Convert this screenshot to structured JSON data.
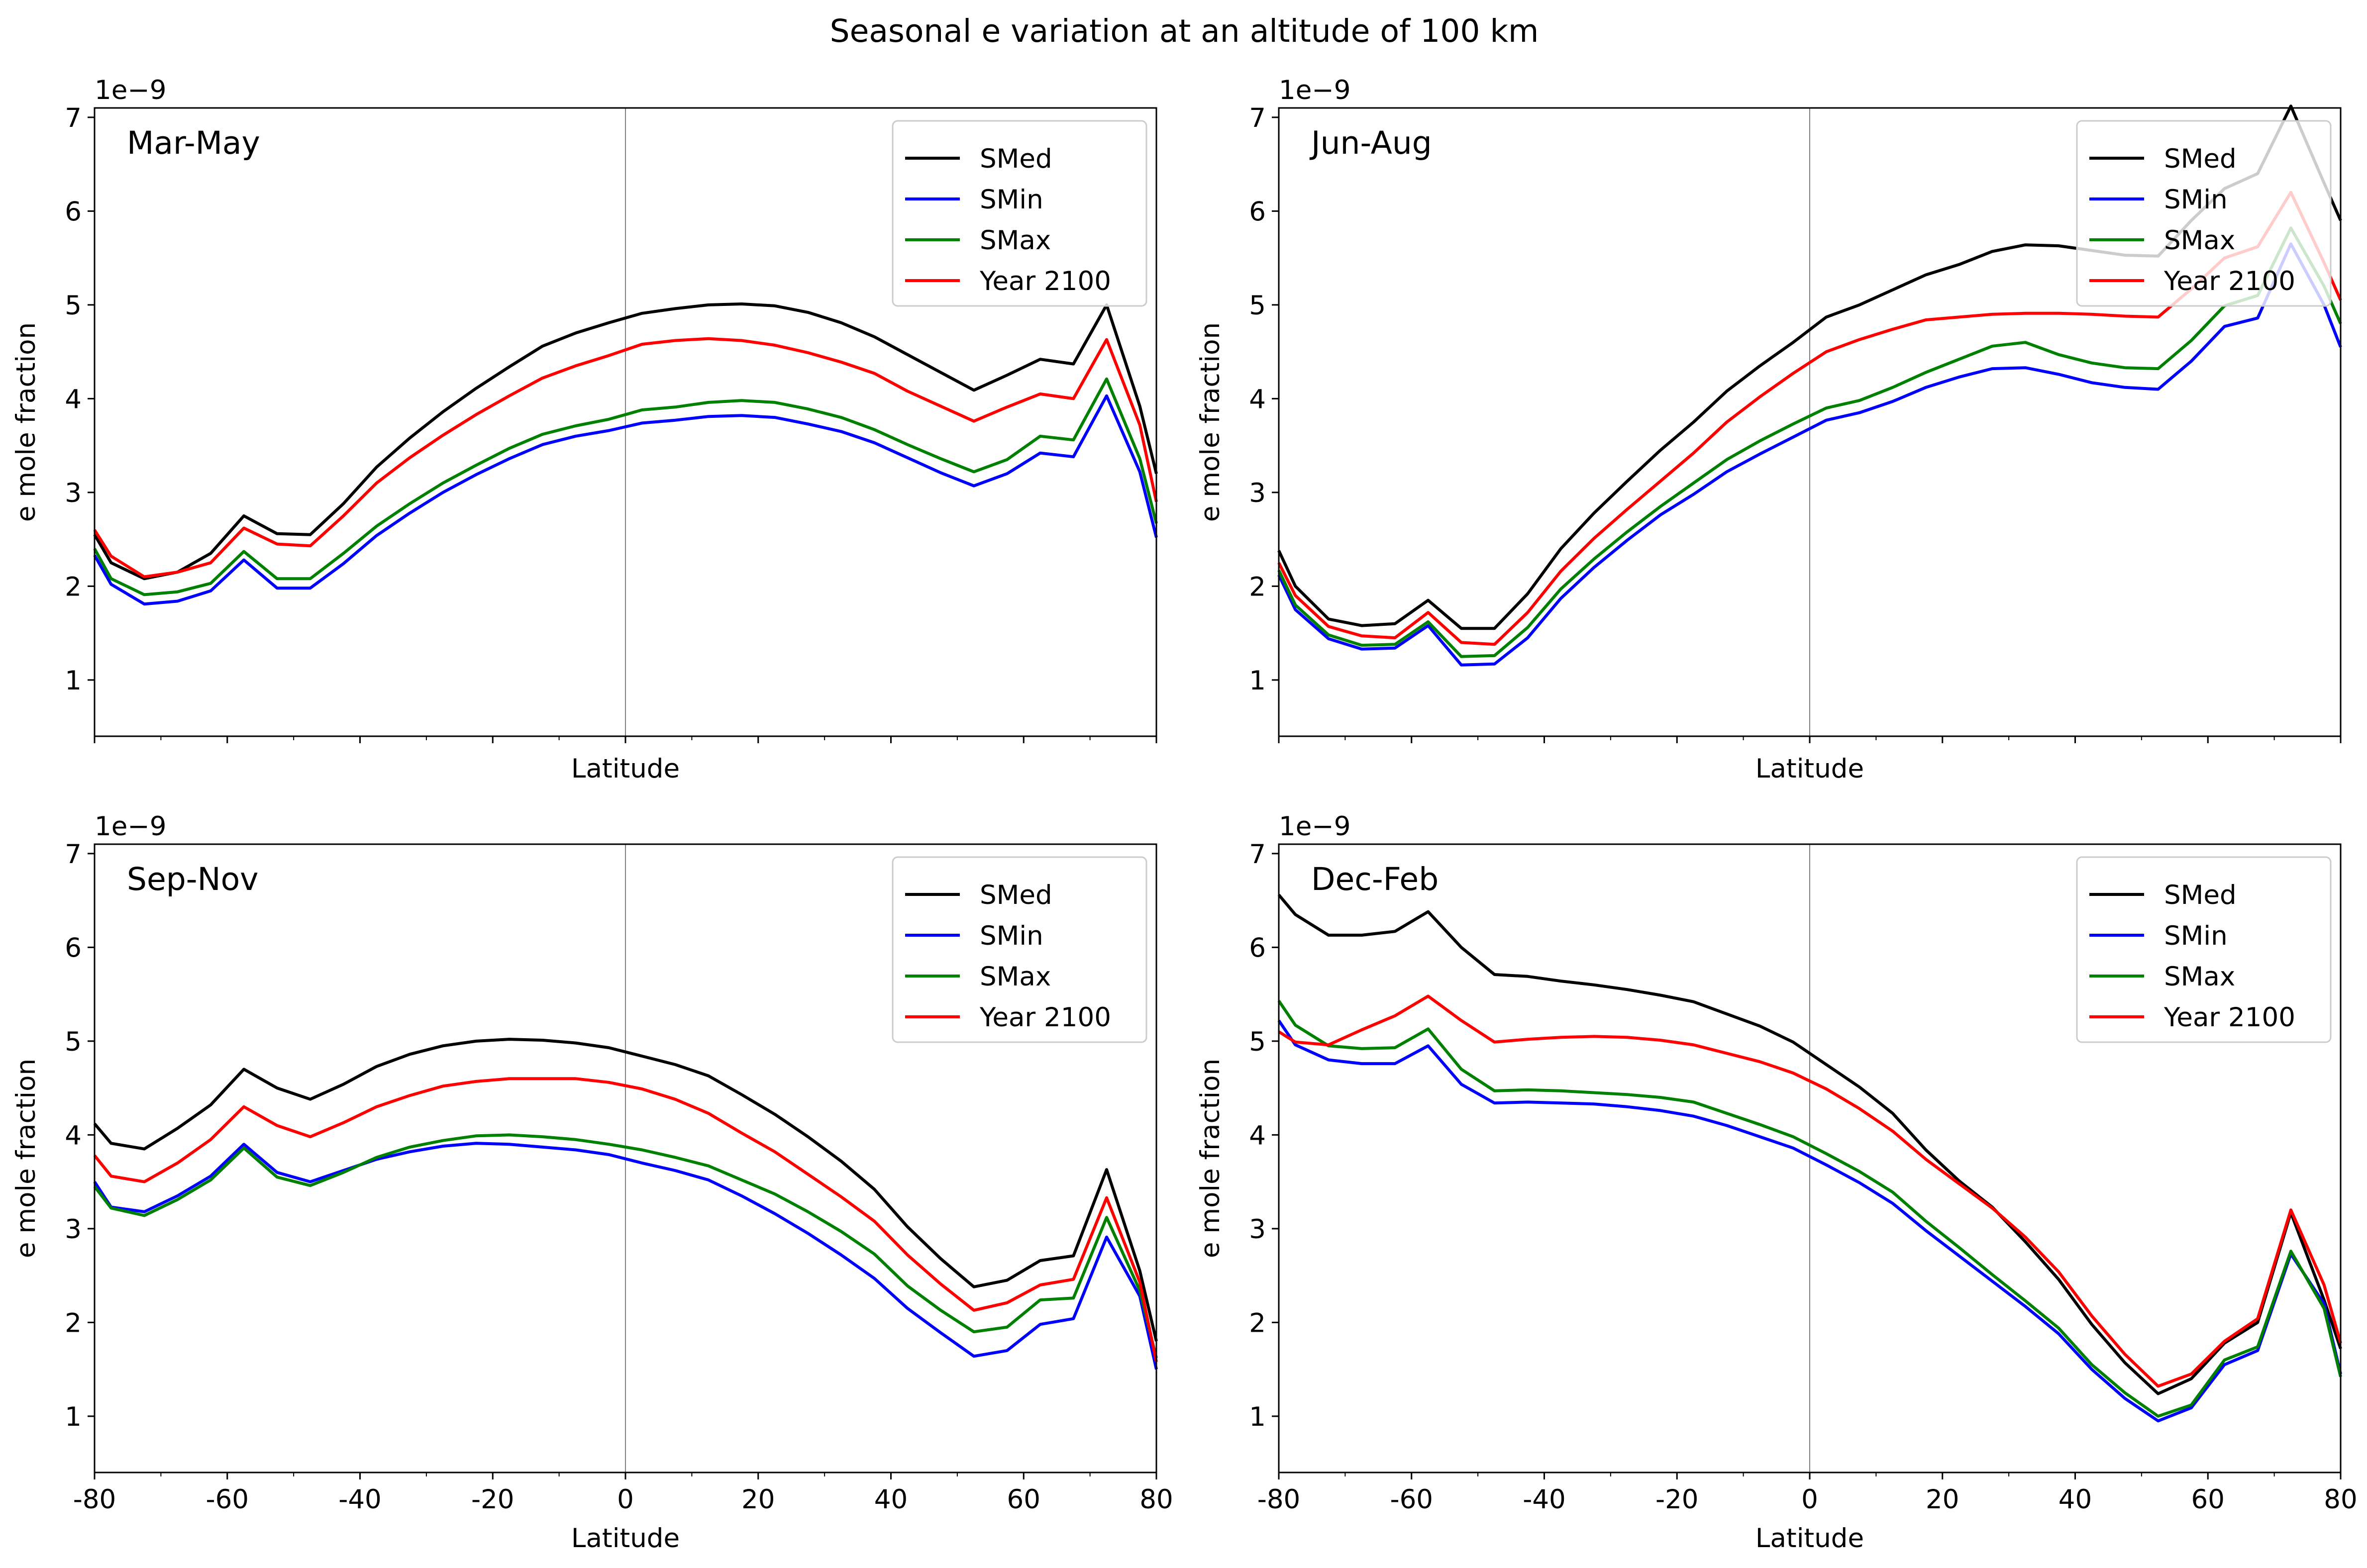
{
  "suptitle": "Seasonal e variation at an altitude of 100 km",
  "colors": {
    "SMed": "#000000",
    "SMin": "#0000ff",
    "SMax": "#008000",
    "Year 2100": "#ff0000"
  },
  "chart_data": [
    {
      "type": "line",
      "panel_label": "Mar-May",
      "xlabel": "Latitude",
      "ylabel": "e mole fraction",
      "y_offset_text": "1e−9",
      "xlim": [
        -80,
        80
      ],
      "ylim": [
        0.4,
        7.1
      ],
      "show_x_tick_labels": false,
      "legend": "top-right",
      "vline_at": 0,
      "x": [
        -80,
        -77.5,
        -72.5,
        -67.5,
        -62.5,
        -57.5,
        -52.5,
        -47.5,
        -42.5,
        -37.5,
        -32.5,
        -27.5,
        -22.5,
        -17.5,
        -12.5,
        -7.5,
        -2.5,
        2.5,
        7.5,
        12.5,
        17.5,
        22.5,
        27.5,
        32.5,
        37.5,
        42.5,
        47.5,
        52.5,
        57.5,
        62.5,
        67.5,
        72.5,
        77.5,
        80
      ],
      "series": [
        {
          "name": "SMed",
          "values": [
            2.55,
            2.25,
            2.08,
            2.15,
            2.35,
            2.75,
            2.56,
            2.55,
            2.88,
            3.27,
            3.58,
            3.86,
            4.11,
            4.34,
            4.56,
            4.7,
            4.81,
            4.91,
            4.96,
            5.0,
            5.01,
            4.99,
            4.92,
            4.81,
            4.66,
            4.47,
            4.28,
            4.09,
            4.25,
            4.42,
            4.37,
            5.0,
            3.92,
            3.2
          ]
        },
        {
          "name": "SMin",
          "values": [
            2.33,
            2.02,
            1.81,
            1.84,
            1.95,
            2.28,
            1.98,
            1.98,
            2.24,
            2.54,
            2.78,
            3.0,
            3.19,
            3.36,
            3.51,
            3.6,
            3.66,
            3.74,
            3.77,
            3.81,
            3.82,
            3.8,
            3.73,
            3.65,
            3.53,
            3.37,
            3.21,
            3.07,
            3.2,
            3.42,
            3.38,
            4.03,
            3.22,
            2.52
          ]
        },
        {
          "name": "SMax",
          "values": [
            2.4,
            2.08,
            1.91,
            1.94,
            2.03,
            2.37,
            2.08,
            2.08,
            2.35,
            2.64,
            2.88,
            3.1,
            3.29,
            3.47,
            3.62,
            3.71,
            3.78,
            3.88,
            3.91,
            3.96,
            3.98,
            3.96,
            3.89,
            3.8,
            3.67,
            3.51,
            3.36,
            3.22,
            3.35,
            3.6,
            3.56,
            4.21,
            3.36,
            2.67
          ]
        },
        {
          "name": "Year 2100",
          "values": [
            2.6,
            2.32,
            2.1,
            2.15,
            2.25,
            2.62,
            2.45,
            2.43,
            2.75,
            3.1,
            3.37,
            3.61,
            3.83,
            4.03,
            4.22,
            4.35,
            4.46,
            4.58,
            4.62,
            4.64,
            4.62,
            4.57,
            4.49,
            4.39,
            4.27,
            4.08,
            3.92,
            3.76,
            3.91,
            4.05,
            4.0,
            4.63,
            3.72,
            2.9
          ]
        }
      ]
    },
    {
      "type": "line",
      "panel_label": "Jun-Aug",
      "xlabel": "Latitude",
      "ylabel": "e mole fraction",
      "y_offset_text": "1e−9",
      "xlim": [
        -80,
        80
      ],
      "ylim": [
        0.4,
        7.1
      ],
      "show_x_tick_labels": false,
      "legend": "top-right",
      "vline_at": 0,
      "x": [
        -80,
        -77.5,
        -72.5,
        -67.5,
        -62.5,
        -57.5,
        -52.5,
        -47.5,
        -42.5,
        -37.5,
        -32.5,
        -27.5,
        -22.5,
        -17.5,
        -12.5,
        -7.5,
        -2.5,
        2.5,
        7.5,
        12.5,
        17.5,
        22.5,
        27.5,
        32.5,
        37.5,
        42.5,
        47.5,
        52.5,
        57.5,
        62.5,
        67.5,
        72.5,
        77.5,
        80
      ],
      "series": [
        {
          "name": "SMed",
          "values": [
            2.38,
            2.0,
            1.65,
            1.58,
            1.6,
            1.85,
            1.55,
            1.55,
            1.92,
            2.4,
            2.78,
            3.12,
            3.45,
            3.75,
            4.08,
            4.35,
            4.6,
            4.87,
            5.0,
            5.16,
            5.32,
            5.43,
            5.57,
            5.64,
            5.63,
            5.58,
            5.53,
            5.52,
            5.9,
            6.24,
            6.4,
            7.12,
            6.3,
            5.9
          ]
        },
        {
          "name": "SMin",
          "values": [
            2.12,
            1.75,
            1.44,
            1.33,
            1.34,
            1.58,
            1.16,
            1.17,
            1.45,
            1.87,
            2.2,
            2.49,
            2.76,
            2.98,
            3.22,
            3.41,
            3.59,
            3.77,
            3.85,
            3.97,
            4.12,
            4.23,
            4.32,
            4.33,
            4.26,
            4.17,
            4.12,
            4.1,
            4.4,
            4.77,
            4.86,
            5.65,
            5.0,
            4.55
          ]
        },
        {
          "name": "SMax",
          "values": [
            2.17,
            1.8,
            1.48,
            1.37,
            1.38,
            1.62,
            1.25,
            1.26,
            1.56,
            1.97,
            2.29,
            2.58,
            2.85,
            3.1,
            3.35,
            3.55,
            3.73,
            3.9,
            3.98,
            4.12,
            4.28,
            4.42,
            4.56,
            4.6,
            4.47,
            4.38,
            4.33,
            4.32,
            4.62,
            4.99,
            5.1,
            5.82,
            5.2,
            4.8
          ]
        },
        {
          "name": "Year 2100",
          "values": [
            2.25,
            1.9,
            1.57,
            1.47,
            1.45,
            1.72,
            1.4,
            1.38,
            1.72,
            2.16,
            2.51,
            2.82,
            3.12,
            3.42,
            3.75,
            4.02,
            4.27,
            4.5,
            4.63,
            4.74,
            4.84,
            4.87,
            4.9,
            4.91,
            4.91,
            4.9,
            4.88,
            4.87,
            5.17,
            5.5,
            5.62,
            6.2,
            5.45,
            5.05
          ]
        }
      ]
    },
    {
      "type": "line",
      "panel_label": "Sep-Nov",
      "xlabel": "Latitude",
      "ylabel": "e mole fraction",
      "y_offset_text": "1e−9",
      "xlim": [
        -80,
        80
      ],
      "ylim": [
        0.4,
        7.1
      ],
      "show_x_tick_labels": true,
      "legend": "top-right",
      "vline_at": 0,
      "x": [
        -80,
        -77.5,
        -72.5,
        -67.5,
        -62.5,
        -57.5,
        -52.5,
        -47.5,
        -42.5,
        -37.5,
        -32.5,
        -27.5,
        -22.5,
        -17.5,
        -12.5,
        -7.5,
        -2.5,
        2.5,
        7.5,
        12.5,
        17.5,
        22.5,
        27.5,
        32.5,
        37.5,
        42.5,
        47.5,
        52.5,
        57.5,
        62.5,
        67.5,
        72.5,
        77.5,
        80
      ],
      "series": [
        {
          "name": "SMed",
          "values": [
            4.12,
            3.91,
            3.85,
            4.07,
            4.32,
            4.7,
            4.5,
            4.38,
            4.54,
            4.73,
            4.86,
            4.95,
            5.0,
            5.02,
            5.01,
            4.98,
            4.93,
            4.84,
            4.75,
            4.63,
            4.43,
            4.22,
            3.98,
            3.72,
            3.42,
            3.02,
            2.68,
            2.38,
            2.45,
            2.66,
            2.71,
            3.63,
            2.55,
            1.8
          ]
        },
        {
          "name": "SMin",
          "values": [
            3.5,
            3.23,
            3.18,
            3.35,
            3.56,
            3.9,
            3.6,
            3.5,
            3.62,
            3.74,
            3.82,
            3.88,
            3.91,
            3.9,
            3.87,
            3.84,
            3.79,
            3.7,
            3.62,
            3.52,
            3.35,
            3.16,
            2.95,
            2.72,
            2.47,
            2.15,
            1.89,
            1.64,
            1.7,
            1.98,
            2.04,
            2.91,
            2.28,
            1.5
          ]
        },
        {
          "name": "SMax",
          "values": [
            3.45,
            3.22,
            3.14,
            3.31,
            3.52,
            3.86,
            3.55,
            3.46,
            3.6,
            3.76,
            3.87,
            3.94,
            3.99,
            4.0,
            3.98,
            3.95,
            3.9,
            3.84,
            3.76,
            3.67,
            3.52,
            3.37,
            3.18,
            2.97,
            2.73,
            2.39,
            2.13,
            1.9,
            1.95,
            2.24,
            2.26,
            3.12,
            2.34,
            1.62
          ]
        },
        {
          "name": "Year 2100",
          "values": [
            3.78,
            3.56,
            3.5,
            3.7,
            3.95,
            4.3,
            4.1,
            3.98,
            4.13,
            4.3,
            4.42,
            4.52,
            4.57,
            4.6,
            4.6,
            4.6,
            4.56,
            4.49,
            4.38,
            4.23,
            4.02,
            3.82,
            3.58,
            3.34,
            3.08,
            2.72,
            2.41,
            2.13,
            2.21,
            2.4,
            2.46,
            3.33,
            2.43,
            1.58
          ]
        }
      ]
    },
    {
      "type": "line",
      "panel_label": "Dec-Feb",
      "xlabel": "Latitude",
      "ylabel": "e mole fraction",
      "y_offset_text": "1e−9",
      "xlim": [
        -80,
        80
      ],
      "ylim": [
        0.4,
        7.1
      ],
      "show_x_tick_labels": true,
      "legend": "top-right",
      "vline_at": 0,
      "x": [
        -80,
        -77.5,
        -72.5,
        -67.5,
        -62.5,
        -57.5,
        -52.5,
        -47.5,
        -42.5,
        -37.5,
        -32.5,
        -27.5,
        -22.5,
        -17.5,
        -12.5,
        -7.5,
        -2.5,
        2.5,
        7.5,
        12.5,
        17.5,
        22.5,
        27.5,
        32.5,
        37.5,
        42.5,
        47.5,
        52.5,
        57.5,
        62.5,
        67.5,
        72.5,
        77.5,
        80
      ],
      "series": [
        {
          "name": "SMed",
          "values": [
            6.56,
            6.35,
            6.13,
            6.13,
            6.17,
            6.38,
            6.0,
            5.71,
            5.69,
            5.64,
            5.6,
            5.55,
            5.49,
            5.42,
            5.29,
            5.16,
            4.99,
            4.75,
            4.51,
            4.23,
            3.84,
            3.51,
            3.23,
            2.86,
            2.46,
            1.98,
            1.57,
            1.24,
            1.4,
            1.78,
            2.0,
            3.17,
            2.24,
            1.72
          ]
        },
        {
          "name": "SMin",
          "values": [
            5.22,
            4.96,
            4.8,
            4.76,
            4.76,
            4.95,
            4.54,
            4.34,
            4.35,
            4.34,
            4.33,
            4.3,
            4.26,
            4.2,
            4.1,
            3.98,
            3.86,
            3.68,
            3.49,
            3.27,
            2.98,
            2.71,
            2.44,
            2.17,
            1.88,
            1.5,
            1.19,
            0.95,
            1.09,
            1.55,
            1.7,
            2.73,
            2.2,
            1.45
          ]
        },
        {
          "name": "SMax",
          "values": [
            5.43,
            5.17,
            4.95,
            4.92,
            4.93,
            5.13,
            4.7,
            4.47,
            4.48,
            4.47,
            4.45,
            4.43,
            4.4,
            4.35,
            4.23,
            4.11,
            3.98,
            3.8,
            3.61,
            3.39,
            3.08,
            2.8,
            2.51,
            2.23,
            1.94,
            1.55,
            1.25,
            1.0,
            1.12,
            1.6,
            1.74,
            2.76,
            2.15,
            1.42
          ]
        },
        {
          "name": "Year 2100",
          "values": [
            5.1,
            4.99,
            4.96,
            5.12,
            5.27,
            5.48,
            5.22,
            4.99,
            5.02,
            5.04,
            5.05,
            5.04,
            5.01,
            4.96,
            4.87,
            4.78,
            4.66,
            4.49,
            4.28,
            4.04,
            3.74,
            3.48,
            3.22,
            2.91,
            2.54,
            2.07,
            1.66,
            1.32,
            1.45,
            1.8,
            2.04,
            3.2,
            2.4,
            1.78
          ]
        }
      ]
    }
  ]
}
